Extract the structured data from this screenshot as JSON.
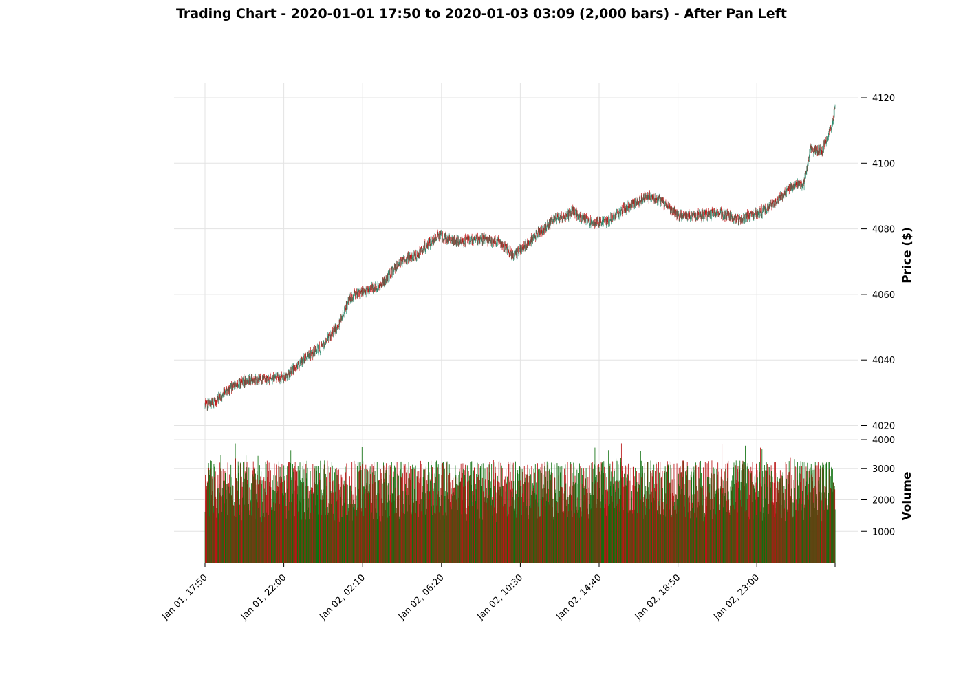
{
  "chart_data": {
    "type": "candlestick",
    "title": "Trading Chart - 2020-01-01 17:50 to 2020-01-03 03:09 (2,000 bars) - After Pan Left",
    "bars": 2000,
    "start": "2020-01-01 17:50",
    "end": "2020-01-03 03:09",
    "bar_interval_minutes": 1,
    "price_panel": {
      "ylabel": "Price ($)",
      "ylim": [
        4020,
        4124
      ],
      "yticks": [
        4020,
        4040,
        4060,
        4080,
        4100,
        4120
      ],
      "grid": true
    },
    "volume_panel": {
      "ylabel": "Volume",
      "ylim": [
        0,
        4000
      ],
      "yticks": [
        1000,
        2000,
        3000,
        4000
      ],
      "grid": true
    },
    "xticks": [
      "Jan 01, 17:50",
      "Jan 01, 22:00",
      "Jan 02, 02:10",
      "Jan 02, 06:20",
      "Jan 02, 10:30",
      "Jan 02, 14:40",
      "Jan 02, 18:50",
      "Jan 02, 23:00"
    ],
    "colors": {
      "up": "#1a7a1a",
      "down": "#c01616",
      "wick": "#2e8b6e",
      "volume_up": "#0b6e0b",
      "volume_down": "#b81010"
    },
    "close_path": [
      [
        0,
        4026
      ],
      [
        40,
        4028
      ],
      [
        100,
        4033
      ],
      [
        150,
        4034
      ],
      [
        200,
        4034
      ],
      [
        260,
        4035
      ],
      [
        310,
        4040
      ],
      [
        370,
        4044
      ],
      [
        420,
        4050
      ],
      [
        460,
        4059
      ],
      [
        510,
        4061
      ],
      [
        560,
        4063
      ],
      [
        620,
        4070
      ],
      [
        670,
        4072
      ],
      [
        740,
        4078
      ],
      [
        800,
        4076
      ],
      [
        870,
        4077
      ],
      [
        930,
        4076
      ],
      [
        980,
        4072
      ],
      [
        1050,
        4078
      ],
      [
        1110,
        4083
      ],
      [
        1170,
        4085
      ],
      [
        1220,
        4082
      ],
      [
        1270,
        4082
      ],
      [
        1330,
        4086
      ],
      [
        1400,
        4090
      ],
      [
        1440,
        4089
      ],
      [
        1500,
        4084
      ],
      [
        1570,
        4084
      ],
      [
        1620,
        4085
      ],
      [
        1700,
        4083
      ],
      [
        1760,
        4085
      ],
      [
        1810,
        4088
      ],
      [
        1860,
        4093
      ],
      [
        1900,
        4094
      ],
      [
        1920,
        4104
      ],
      [
        1960,
        4104
      ],
      [
        1990,
        4112
      ],
      [
        1999,
        4117
      ]
    ],
    "volume_range": [
      1300,
      3800
    ]
  }
}
